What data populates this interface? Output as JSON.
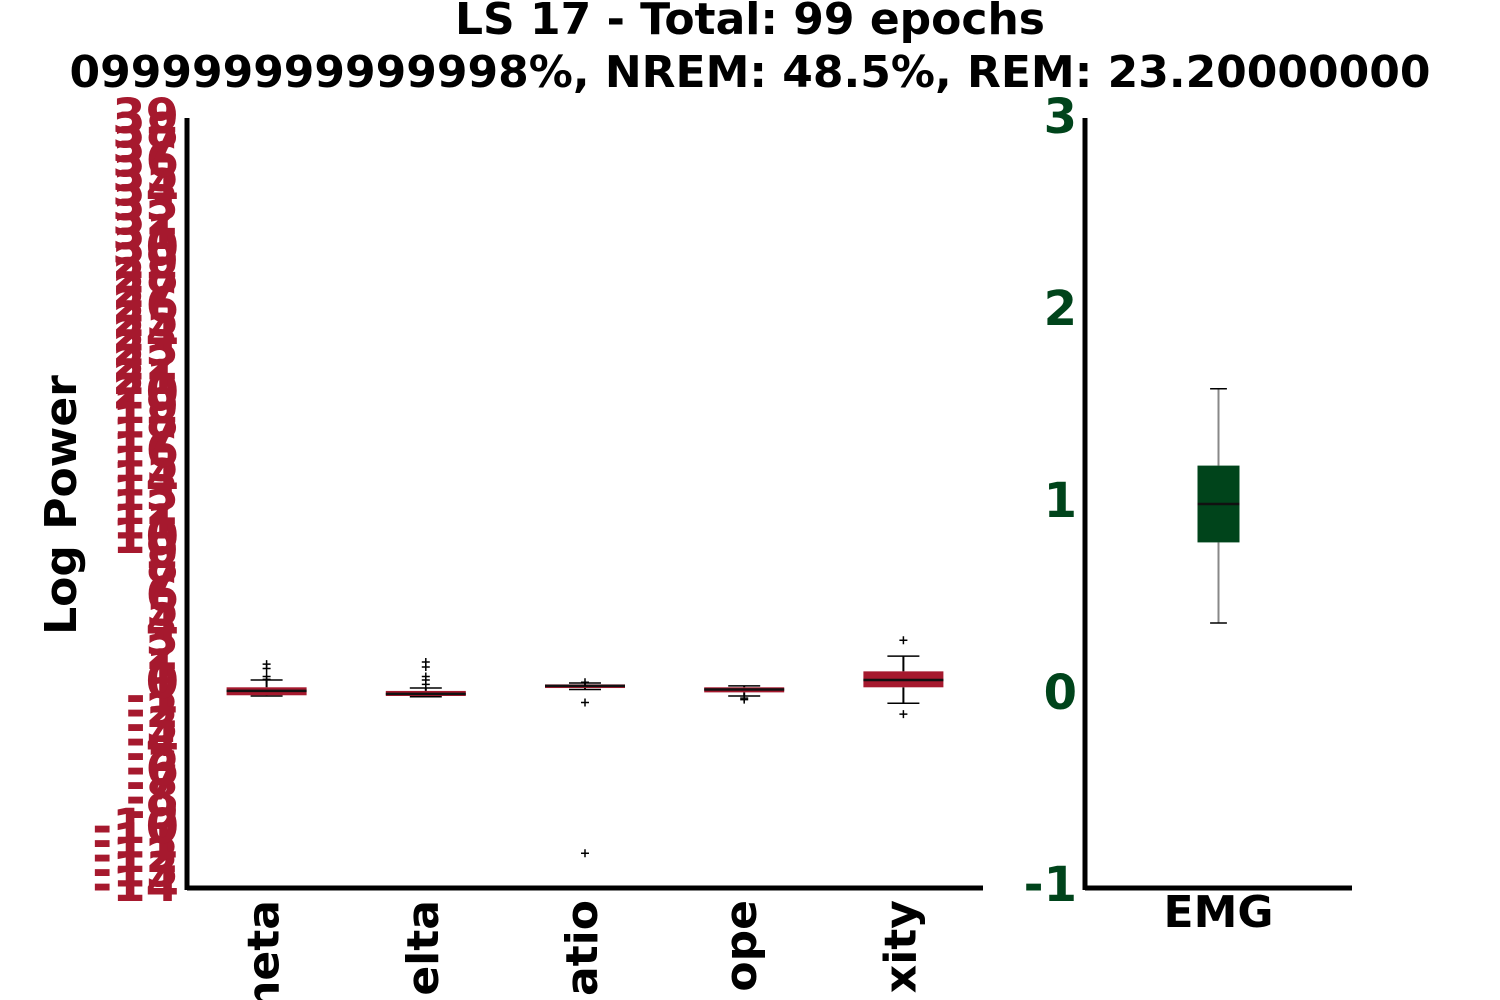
{
  "chart_data": [
    {
      "type": "box",
      "title": "LS 17 - Total: 99 epochs",
      "subtitle": "099999999999998%, NREM: 48.5%, REM: 23.20000000",
      "ylabel": "Log Power",
      "color": "#a6192e",
      "categories": [
        "heta",
        "elta",
        "atio",
        "ope",
        "xity"
      ],
      "boxes": [
        {
          "whisker_low": -0.75,
          "q1": -0.7,
          "median": -0.4,
          "q3": -0.15,
          "whisker_high": 0.35,
          "outliers": [
            1.45,
            1.15,
            0.6,
            0.4
          ]
        },
        {
          "whisker_low": -0.8,
          "q1": -0.75,
          "median": -0.6,
          "q3": -0.4,
          "whisker_high": -0.2,
          "outliers": [
            1.6,
            1.25,
            0.6,
            0.35,
            0.05
          ]
        },
        {
          "whisker_low": -0.3,
          "q1": -0.2,
          "median": -0.05,
          "q3": 0.05,
          "whisker_high": 0.15,
          "outliers": [
            0.2,
            -1.2,
            -11.6
          ]
        },
        {
          "whisker_low": -0.75,
          "q1": -0.5,
          "median": -0.3,
          "q3": -0.15,
          "whisker_high": -0.05,
          "outliers": [
            -0.9,
            -1.0
          ]
        },
        {
          "whisker_low": -1.25,
          "q1": -0.15,
          "median": 0.35,
          "q3": 0.95,
          "whisker_high": 2.0,
          "outliers": [
            3.1,
            -2.0
          ]
        }
      ],
      "ylim": [
        -14,
        39
      ],
      "yticks": [
        -14,
        -13,
        -12,
        -11,
        -10,
        -9,
        -8,
        -7,
        -6,
        -5,
        -4,
        -3,
        -2,
        -1,
        0,
        1,
        2,
        3,
        4,
        5,
        6,
        7,
        8,
        9,
        10,
        11,
        12,
        13,
        14,
        15,
        16,
        17,
        18,
        19,
        20,
        21,
        22,
        23,
        24,
        25,
        26,
        27,
        28,
        29,
        30,
        31,
        32,
        33,
        34,
        35,
        36,
        37,
        38,
        39
      ]
    },
    {
      "type": "box",
      "color": "#00441b",
      "categories": [
        "EMG"
      ],
      "boxes": [
        {
          "whisker_low": 0.38,
          "q1": 0.8,
          "median": 1.0,
          "q3": 1.2,
          "whisker_high": 1.6,
          "outliers": []
        }
      ],
      "ylim": [
        -1,
        3
      ],
      "yticks": [
        -1,
        0,
        1,
        2,
        3
      ]
    }
  ]
}
